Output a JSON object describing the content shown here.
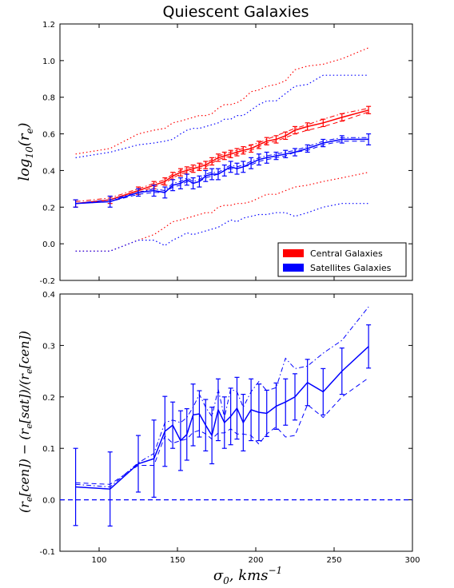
{
  "title": "Quiescent Galaxies",
  "colors": {
    "central": "#ff0000",
    "satellite": "#0000ff",
    "axis": "#000000"
  },
  "chart_data": [
    {
      "type": "line",
      "ylabel": "log10(re)",
      "xlim": [
        75,
        300
      ],
      "ylim": [
        -0.2,
        1.2
      ],
      "yticks": [
        "-0.2",
        "0.0",
        "0.2",
        "0.4",
        "0.6",
        "0.8",
        "1.0",
        "1.2"
      ],
      "legend": {
        "position": "bottom-right",
        "entries": [
          "Central Galaxies",
          "Satellites Galaxies"
        ]
      },
      "series": [
        {
          "name": "Central Galaxies",
          "color": "#ff0000",
          "x": [
            85,
            107,
            125,
            135,
            142,
            147,
            152,
            156,
            160,
            164,
            168,
            172,
            176,
            180,
            184,
            188,
            192,
            197,
            202,
            207,
            213,
            219,
            225,
            233,
            243,
            255,
            272
          ],
          "median": [
            0.22,
            0.24,
            0.29,
            0.32,
            0.34,
            0.37,
            0.39,
            0.4,
            0.41,
            0.42,
            0.43,
            0.45,
            0.47,
            0.48,
            0.49,
            0.5,
            0.51,
            0.52,
            0.54,
            0.56,
            0.57,
            0.59,
            0.62,
            0.64,
            0.66,
            0.69,
            0.73
          ],
          "err": [
            0.02,
            0.02,
            0.02,
            0.02,
            0.02,
            0.02,
            0.02,
            0.02,
            0.02,
            0.02,
            0.02,
            0.02,
            0.02,
            0.02,
            0.02,
            0.02,
            0.02,
            0.02,
            0.02,
            0.02,
            0.02,
            0.02,
            0.02,
            0.02,
            0.02,
            0.02,
            0.02
          ],
          "dashed": [
            0.22,
            0.23,
            0.28,
            0.31,
            0.33,
            0.36,
            0.38,
            0.39,
            0.4,
            0.41,
            0.42,
            0.44,
            0.46,
            0.47,
            0.48,
            0.49,
            0.5,
            0.51,
            0.53,
            0.55,
            0.56,
            0.58,
            0.6,
            0.62,
            0.64,
            0.67,
            0.72
          ],
          "dashdot": [
            0.23,
            0.25,
            0.3,
            0.33,
            0.35,
            0.38,
            0.4,
            0.41,
            0.42,
            0.43,
            0.44,
            0.46,
            0.48,
            0.49,
            0.5,
            0.51,
            0.52,
            0.54,
            0.55,
            0.57,
            0.59,
            0.61,
            0.63,
            0.65,
            0.68,
            0.71,
            0.74
          ],
          "upper": [
            0.49,
            0.52,
            0.6,
            0.62,
            0.63,
            0.66,
            0.67,
            0.68,
            0.69,
            0.7,
            0.7,
            0.71,
            0.74,
            0.76,
            0.76,
            0.77,
            0.79,
            0.83,
            0.84,
            0.86,
            0.87,
            0.89,
            0.95,
            0.97,
            0.98,
            1.01,
            1.07
          ],
          "lower": [
            -0.04,
            -0.04,
            0.02,
            0.05,
            0.09,
            0.12,
            0.13,
            0.14,
            0.15,
            0.16,
            0.17,
            0.17,
            0.2,
            0.21,
            0.21,
            0.22,
            0.22,
            0.23,
            0.25,
            0.27,
            0.27,
            0.29,
            0.31,
            0.32,
            0.34,
            0.36,
            0.39
          ]
        },
        {
          "name": "Satellites Galaxies",
          "color": "#0000ff",
          "x": [
            85,
            107,
            125,
            135,
            142,
            147,
            152,
            156,
            160,
            164,
            168,
            172,
            176,
            180,
            184,
            188,
            192,
            197,
            202,
            207,
            213,
            219,
            225,
            233,
            243,
            255,
            272
          ],
          "median": [
            0.22,
            0.23,
            0.28,
            0.29,
            0.28,
            0.32,
            0.33,
            0.35,
            0.33,
            0.34,
            0.37,
            0.38,
            0.38,
            0.4,
            0.42,
            0.41,
            0.42,
            0.44,
            0.46,
            0.47,
            0.48,
            0.49,
            0.5,
            0.52,
            0.55,
            0.57,
            0.57
          ],
          "err": [
            0.02,
            0.03,
            0.02,
            0.03,
            0.03,
            0.03,
            0.03,
            0.03,
            0.03,
            0.03,
            0.03,
            0.03,
            0.03,
            0.03,
            0.03,
            0.03,
            0.03,
            0.03,
            0.03,
            0.03,
            0.02,
            0.02,
            0.02,
            0.02,
            0.02,
            0.02,
            0.03
          ],
          "dashed": [
            0.22,
            0.23,
            0.27,
            0.28,
            0.28,
            0.31,
            0.32,
            0.34,
            0.33,
            0.34,
            0.36,
            0.37,
            0.38,
            0.4,
            0.41,
            0.41,
            0.42,
            0.43,
            0.45,
            0.46,
            0.47,
            0.48,
            0.5,
            0.51,
            0.54,
            0.56,
            0.56
          ],
          "dashdot": [
            0.22,
            0.24,
            0.28,
            0.3,
            0.29,
            0.33,
            0.34,
            0.36,
            0.34,
            0.35,
            0.38,
            0.39,
            0.39,
            0.41,
            0.43,
            0.42,
            0.43,
            0.45,
            0.47,
            0.48,
            0.49,
            0.5,
            0.51,
            0.53,
            0.56,
            0.58,
            0.58
          ],
          "upper": [
            0.47,
            0.5,
            0.54,
            0.55,
            0.56,
            0.57,
            0.6,
            0.62,
            0.63,
            0.63,
            0.64,
            0.65,
            0.66,
            0.68,
            0.68,
            0.7,
            0.7,
            0.73,
            0.76,
            0.78,
            0.78,
            0.82,
            0.86,
            0.87,
            0.92,
            0.92,
            0.92
          ],
          "lower": [
            -0.04,
            -0.04,
            0.02,
            0.02,
            -0.01,
            0.02,
            0.04,
            0.06,
            0.05,
            0.06,
            0.07,
            0.08,
            0.09,
            0.11,
            0.13,
            0.12,
            0.14,
            0.15,
            0.16,
            0.16,
            0.17,
            0.17,
            0.15,
            0.17,
            0.2,
            0.22,
            0.22
          ]
        }
      ]
    },
    {
      "type": "line",
      "xlabel": "σ0, kms^-1",
      "ylabel": "(re[cen]) - (re[sat])/(re[cen])",
      "xlim": [
        75,
        300
      ],
      "ylim": [
        -0.1,
        0.4
      ],
      "xticks": [
        "100",
        "150",
        "200",
        "250",
        "300"
      ],
      "yticks": [
        "-0.1",
        "0.0",
        "0.1",
        "0.2",
        "0.3",
        "0.4"
      ],
      "reference_line": 0.0,
      "series": [
        {
          "color": "#0000ff",
          "x": [
            85,
            107,
            125,
            135,
            142,
            147,
            152,
            156,
            160,
            164,
            168,
            172,
            176,
            180,
            184,
            188,
            192,
            197,
            202,
            207,
            213,
            219,
            225,
            233,
            243,
            255,
            272
          ],
          "median": [
            0.025,
            0.021,
            0.07,
            0.08,
            0.133,
            0.145,
            0.115,
            0.127,
            0.165,
            0.167,
            0.145,
            0.125,
            0.175,
            0.15,
            0.162,
            0.178,
            0.15,
            0.175,
            0.17,
            0.168,
            0.182,
            0.19,
            0.2,
            0.228,
            0.21,
            0.25,
            0.298
          ],
          "err": [
            0.075,
            0.072,
            0.055,
            0.075,
            0.068,
            0.045,
            0.058,
            0.05,
            0.06,
            0.045,
            0.05,
            0.055,
            0.06,
            0.05,
            0.055,
            0.06,
            0.055,
            0.06,
            0.055,
            0.045,
            0.045,
            0.045,
            0.045,
            0.045,
            0.045,
            0.045,
            0.042
          ],
          "dashed": [
            0.033,
            0.03,
            0.067,
            0.067,
            0.124,
            0.11,
            0.115,
            0.118,
            0.131,
            0.135,
            0.128,
            0.118,
            0.13,
            0.13,
            0.138,
            0.128,
            0.128,
            0.125,
            0.108,
            0.128,
            0.142,
            0.122,
            0.125,
            0.185,
            0.16,
            0.2,
            0.237
          ],
          "dashdot": [
            0.03,
            0.025,
            0.072,
            0.09,
            0.15,
            0.155,
            0.15,
            0.16,
            0.18,
            0.205,
            0.18,
            0.162,
            0.215,
            0.16,
            0.215,
            0.21,
            0.18,
            0.21,
            0.23,
            0.212,
            0.218,
            0.275,
            0.255,
            0.26,
            0.285,
            0.31,
            0.375
          ]
        }
      ]
    }
  ]
}
